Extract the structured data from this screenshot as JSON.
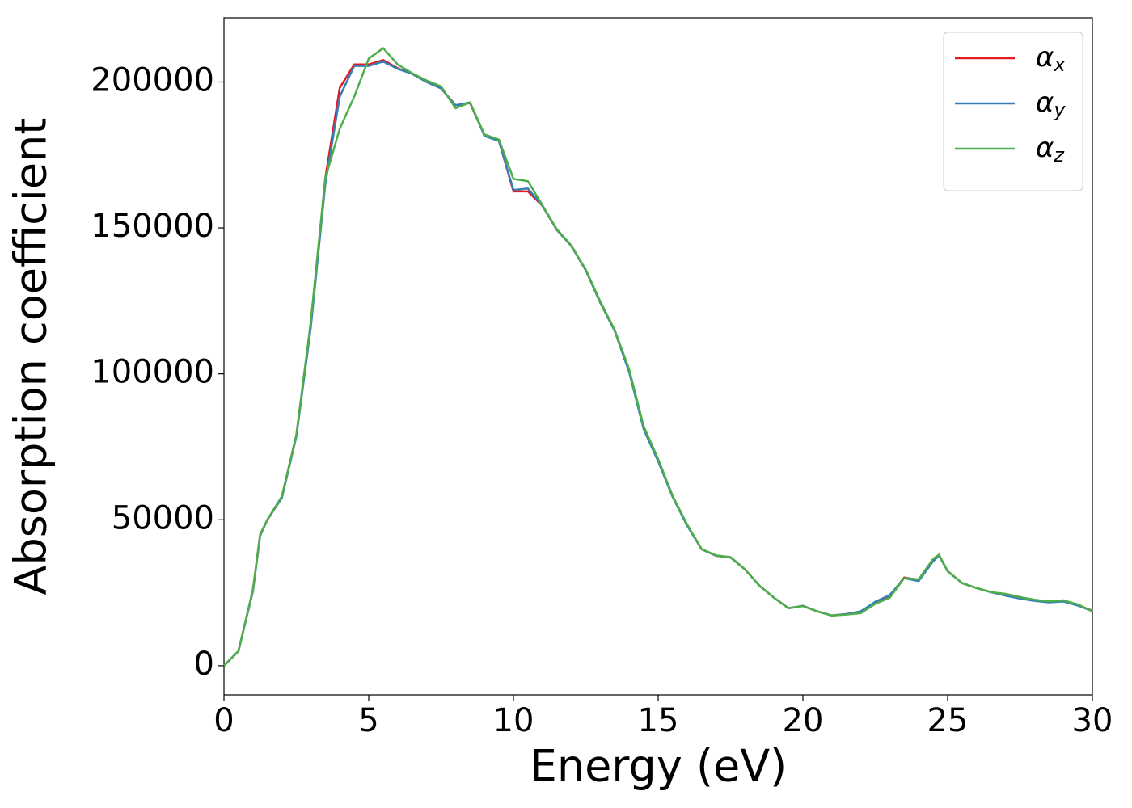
{
  "chart_data": {
    "type": "line",
    "xlabel": "Energy (eV)",
    "ylabel": "Absorption coefficient",
    "x": [
      0,
      0.5,
      1,
      1.25,
      1.5,
      2,
      2.5,
      3,
      3.5,
      4,
      4.5,
      5,
      5.5,
      6,
      6.5,
      7,
      7.5,
      8,
      8.5,
      9,
      9.5,
      10,
      10.5,
      11,
      11.5,
      12,
      12.5,
      13,
      13.5,
      14,
      14.5,
      15,
      15.5,
      16,
      16.5,
      17,
      17.5,
      18,
      18.5,
      19,
      19.5,
      20,
      20.5,
      21,
      21.5,
      22,
      22.5,
      23,
      23.5,
      24,
      24.5,
      24.7,
      25,
      25.5,
      26,
      26.5,
      27,
      27.5,
      28,
      28.5,
      29,
      29.5,
      30
    ],
    "series": [
      {
        "name": "αx",
        "color": "#e41a1c",
        "values": [
          0,
          5000,
          26000,
          45000,
          50000,
          58000,
          79000,
          117000,
          167000,
          198000,
          206000,
          206000,
          207500,
          204700,
          202800,
          200000,
          197800,
          192000,
          192800,
          181700,
          179800,
          162500,
          162500,
          157600,
          149300,
          143800,
          135500,
          124400,
          114700,
          100800,
          81400,
          70400,
          58000,
          48200,
          39900,
          37700,
          37100,
          33000,
          27400,
          23300,
          19700,
          20500,
          18600,
          17200,
          17700,
          18600,
          21600,
          23800,
          30200,
          29400,
          36300,
          38000,
          32400,
          28300,
          26600,
          25200,
          24400,
          23300,
          22400,
          21900,
          22200,
          20800,
          18800
        ]
      },
      {
        "name": "αy",
        "color": "#377eb8",
        "values": [
          0,
          5000,
          25500,
          44500,
          50000,
          57500,
          78500,
          116000,
          165000,
          195000,
          205500,
          205500,
          207000,
          204500,
          202800,
          200000,
          197800,
          192000,
          193000,
          181500,
          179800,
          163000,
          163500,
          157600,
          149300,
          143800,
          135500,
          124400,
          114700,
          100500,
          81000,
          70000,
          57800,
          48000,
          39900,
          37700,
          37100,
          33000,
          27400,
          23300,
          19700,
          20500,
          18600,
          17200,
          17700,
          18600,
          21900,
          24200,
          30000,
          29000,
          35800,
          37700,
          32400,
          28300,
          26600,
          25200,
          24000,
          23000,
          22200,
          21700,
          22000,
          20600,
          18700
        ]
      },
      {
        "name": "αz",
        "color": "#4daf4a",
        "values": [
          0,
          5000,
          26000,
          45000,
          50000,
          58000,
          79000,
          118000,
          167000,
          184000,
          195000,
          208000,
          211600,
          206000,
          203000,
          200500,
          198500,
          191000,
          193000,
          182000,
          180300,
          166800,
          166000,
          157800,
          149500,
          144000,
          135700,
          124800,
          115000,
          101500,
          82000,
          70800,
          58200,
          48400,
          40000,
          37800,
          37200,
          33000,
          27400,
          23300,
          19700,
          20400,
          18600,
          17200,
          17500,
          18000,
          21200,
          23300,
          30000,
          29600,
          36600,
          38000,
          32400,
          28300,
          26600,
          25200,
          24600,
          23500,
          22600,
          22000,
          22400,
          21000,
          18600
        ]
      }
    ],
    "xlim": [
      0,
      30
    ],
    "xticks": [
      0,
      5,
      10,
      15,
      20,
      25,
      30
    ],
    "ylim": [
      -10000,
      222000
    ],
    "yticks": [
      0,
      50000,
      100000,
      150000,
      200000
    ],
    "grid": false,
    "legend": "upper right"
  }
}
